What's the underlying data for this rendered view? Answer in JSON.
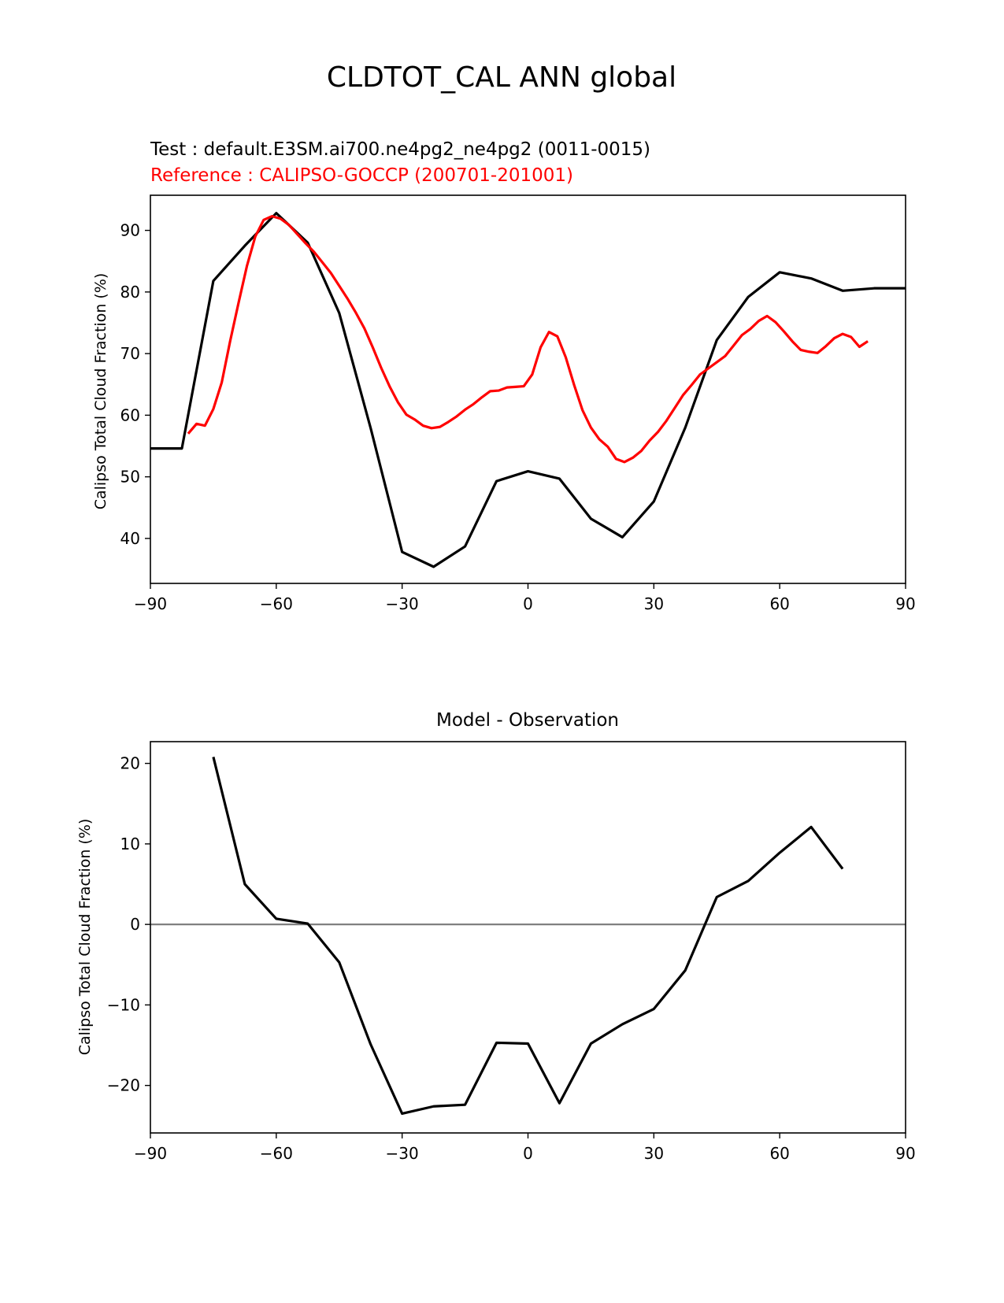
{
  "title": "CLDTOT_CAL ANN global",
  "chart_data": [
    {
      "type": "line",
      "test_label": "Test : default.E3SM.ai700.ne4pg2_ne4pg2 (0011-0015)",
      "reference_label": "Reference : CALIPSO-GOCCP (200701-201001)",
      "xlabel": "",
      "ylabel": "Calipso Total Cloud Fraction (%)",
      "xlim": [
        -90,
        90
      ],
      "ylim": [
        32.7,
        95.7
      ],
      "xticks": [
        -90,
        -60,
        -30,
        0,
        30,
        60,
        90
      ],
      "xtick_labels": [
        "−90",
        "−60",
        "−30",
        "0",
        "30",
        "60",
        "90"
      ],
      "yticks": [
        40,
        50,
        60,
        70,
        80,
        90
      ],
      "ytick_labels": [
        "40",
        "50",
        "60",
        "70",
        "80",
        "90"
      ],
      "series": [
        {
          "color": "#000000",
          "x": [
            -90,
            -82.5,
            -75,
            -67.5,
            -60,
            -52.5,
            -45,
            -37.5,
            -30,
            -22.5,
            -15,
            -7.5,
            0,
            7.5,
            15,
            22.5,
            30,
            37.5,
            45,
            52.5,
            60,
            67.5,
            75,
            82.5,
            90
          ],
          "y": [
            54.6,
            54.6,
            81.8,
            87.5,
            92.8,
            88.0,
            76.6,
            57.9,
            37.8,
            35.4,
            38.7,
            49.3,
            50.9,
            49.7,
            43.2,
            40.2,
            46.0,
            58.0,
            72.2,
            79.2,
            83.2,
            82.2,
            80.2,
            80.6,
            80.6
          ]
        },
        {
          "color": "#ff0000",
          "x": [
            -81,
            -79,
            -77,
            -75,
            -73,
            -71,
            -69,
            -67,
            -65,
            -63,
            -61,
            -59,
            -57,
            -55,
            -53,
            -51,
            -49,
            -47,
            -45,
            -43,
            -41,
            -39,
            -37,
            -35,
            -33,
            -31,
            -29,
            -27,
            -25,
            -23,
            -21,
            -19,
            -17,
            -15,
            -13,
            -11,
            -9,
            -7,
            -5,
            -3,
            -1,
            1,
            3,
            5,
            7,
            9,
            11,
            13,
            15,
            17,
            19,
            21,
            23,
            25,
            27,
            29,
            31,
            33,
            35,
            37,
            39,
            41,
            43,
            45,
            47,
            49,
            51,
            53,
            55,
            57,
            59,
            61,
            63,
            65,
            67,
            69,
            71,
            73,
            75,
            77,
            79,
            81
          ],
          "y": [
            57.0,
            58.6,
            58.3,
            61.0,
            65.3,
            72.0,
            78.2,
            84.2,
            89.0,
            91.7,
            92.3,
            91.9,
            90.9,
            89.4,
            87.9,
            86.5,
            84.8,
            83.1,
            81.0,
            78.9,
            76.6,
            74.1,
            71.0,
            67.7,
            64.7,
            62.1,
            60.1,
            59.3,
            58.3,
            57.9,
            58.1,
            58.9,
            59.8,
            60.9,
            61.8,
            62.9,
            63.9,
            64.0,
            64.5,
            64.6,
            64.7,
            66.6,
            71.0,
            73.5,
            72.8,
            69.4,
            64.9,
            60.8,
            58.0,
            56.1,
            54.9,
            52.9,
            52.4,
            53.1,
            54.2,
            55.9,
            57.3,
            59.1,
            61.2,
            63.3,
            64.9,
            66.6,
            67.6,
            68.6,
            69.6,
            71.3,
            73.0,
            74.0,
            75.3,
            76.1,
            75.1,
            73.6,
            72.0,
            70.6,
            70.3,
            70.1,
            71.2,
            72.5,
            73.2,
            72.7,
            71.1,
            72.0
          ]
        }
      ]
    },
    {
      "type": "line",
      "title": "Model - Observation",
      "xlabel": "",
      "ylabel": "Calipso Total Cloud Fraction (%)",
      "xlim": [
        -90,
        90
      ],
      "ylim": [
        -25.9,
        22.7
      ],
      "xticks": [
        -90,
        -60,
        -30,
        0,
        30,
        60,
        90
      ],
      "xtick_labels": [
        "−90",
        "−60",
        "−30",
        "0",
        "30",
        "60",
        "90"
      ],
      "yticks": [
        -20,
        -10,
        0,
        10,
        20
      ],
      "ytick_labels": [
        "−20",
        "−10",
        "0",
        "10",
        "20"
      ],
      "zero_line_color": "#808080",
      "series": [
        {
          "color": "#000000",
          "x": [
            -75,
            -67.5,
            -60,
            -52.5,
            -45,
            -37.5,
            -30,
            -22.5,
            -15,
            -7.5,
            0,
            7.5,
            15,
            22.5,
            30,
            37.5,
            45,
            52.5,
            60,
            67.5,
            75
          ],
          "y": [
            20.8,
            5.0,
            0.7,
            0.1,
            -4.7,
            -14.9,
            -23.5,
            -22.6,
            -22.4,
            -14.7,
            -14.8,
            -22.2,
            -14.8,
            -12.4,
            -10.5,
            -5.7,
            3.4,
            5.4,
            8.9,
            12.1,
            6.9
          ]
        }
      ]
    }
  ]
}
